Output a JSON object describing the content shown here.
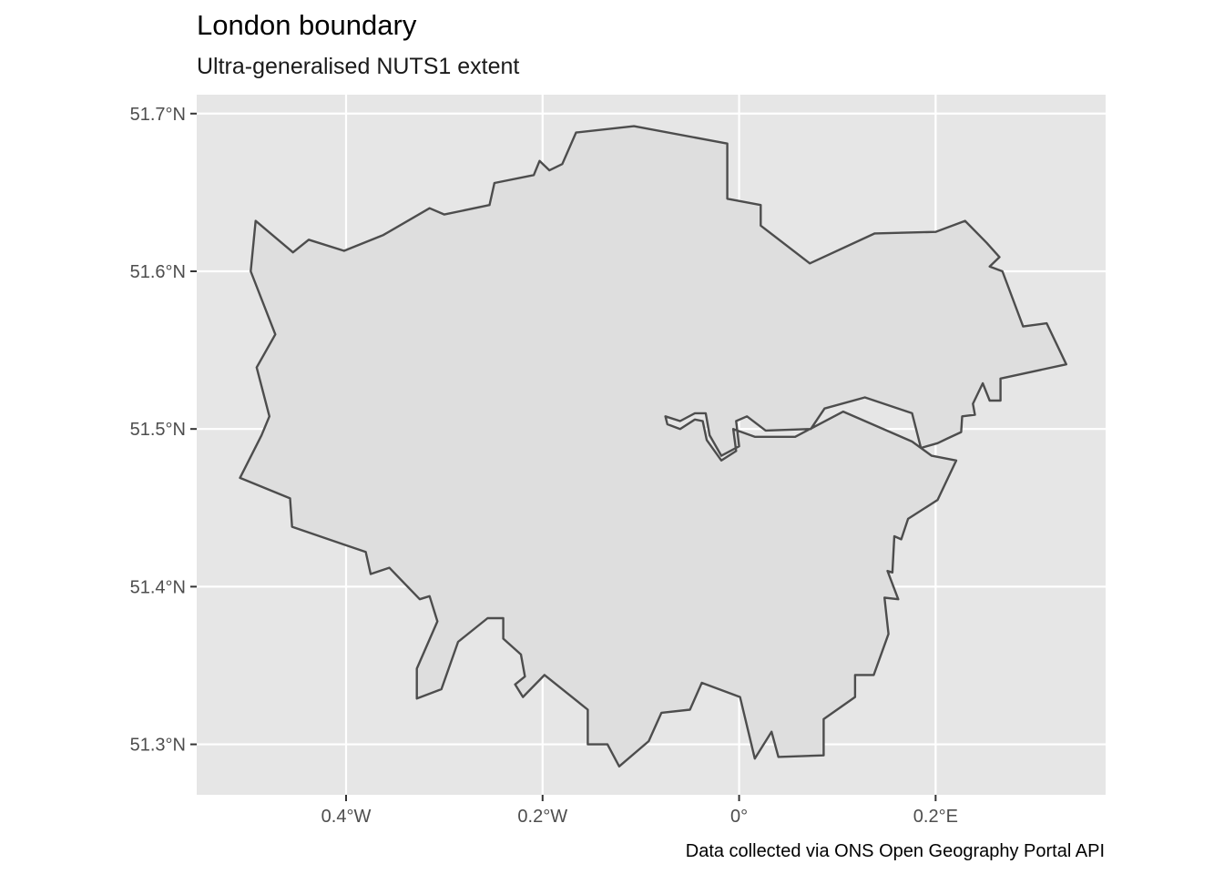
{
  "chart_data": {
    "type": "map",
    "title": "London boundary",
    "subtitle": "Ultra-generalised NUTS1 extent",
    "caption": "Data collected via ONS Open Geography Portal API",
    "xlim": [
      -0.552,
      0.373
    ],
    "ylim": [
      51.268,
      51.712
    ],
    "x_ticks": [
      {
        "value": -0.4,
        "label": "0.4°W"
      },
      {
        "value": -0.2,
        "label": "0.2°W"
      },
      {
        "value": 0.0,
        "label": "0°"
      },
      {
        "value": 0.2,
        "label": "0.2°E"
      }
    ],
    "y_ticks": [
      {
        "value": 51.7,
        "label": "51.7°N"
      },
      {
        "value": 51.6,
        "label": "51.6°N"
      },
      {
        "value": 51.5,
        "label": "51.5°N"
      },
      {
        "value": 51.4,
        "label": "51.4°N"
      },
      {
        "value": 51.3,
        "label": "51.3°N"
      }
    ],
    "grid": true,
    "colors": {
      "panel_background": "#e6e6e6",
      "grid": "#ffffff",
      "region_fill": "#dedede",
      "region_stroke": "#4d4d4d"
    },
    "region": {
      "name": "London",
      "outline": [
        [
          -0.107,
          51.692
        ],
        [
          -0.012,
          51.681
        ],
        [
          -0.012,
          51.646
        ],
        [
          0.022,
          51.642
        ],
        [
          0.022,
          51.629
        ],
        [
          0.072,
          51.605
        ],
        [
          0.138,
          51.624
        ],
        [
          0.2,
          51.625
        ],
        [
          0.23,
          51.632
        ],
        [
          0.252,
          51.618
        ],
        [
          0.265,
          51.609
        ],
        [
          0.255,
          51.603
        ],
        [
          0.268,
          51.6
        ],
        [
          0.289,
          51.565
        ],
        [
          0.313,
          51.567
        ],
        [
          0.333,
          51.541
        ],
        [
          0.266,
          51.532
        ],
        [
          0.266,
          51.518
        ],
        [
          0.255,
          51.518
        ],
        [
          0.248,
          51.529
        ],
        [
          0.238,
          51.516
        ],
        [
          0.24,
          51.509
        ],
        [
          0.227,
          51.508
        ],
        [
          0.226,
          51.498
        ],
        [
          0.212,
          51.494
        ],
        [
          0.202,
          51.491
        ],
        [
          0.185,
          51.488
        ],
        [
          0.176,
          51.51
        ],
        [
          0.128,
          51.52
        ],
        [
          0.087,
          51.513
        ],
        [
          0.073,
          51.5
        ],
        [
          0.027,
          51.499
        ],
        [
          0.008,
          51.508
        ],
        [
          -0.003,
          51.505
        ],
        [
          0.0,
          51.489
        ],
        [
          -0.018,
          51.483
        ],
        [
          -0.03,
          51.496
        ],
        [
          -0.034,
          51.51
        ],
        [
          -0.045,
          51.51
        ],
        [
          -0.06,
          51.505
        ],
        [
          -0.075,
          51.508
        ],
        [
          -0.073,
          51.503
        ],
        [
          -0.06,
          51.5
        ],
        [
          -0.045,
          51.506
        ],
        [
          -0.037,
          51.505
        ],
        [
          -0.033,
          51.493
        ],
        [
          -0.018,
          51.48
        ],
        [
          -0.003,
          51.486
        ],
        [
          -0.006,
          51.5
        ],
        [
          0.016,
          51.495
        ],
        [
          0.057,
          51.495
        ],
        [
          0.106,
          51.511
        ],
        [
          0.176,
          51.492
        ],
        [
          0.196,
          51.483
        ],
        [
          0.221,
          51.48
        ],
        [
          0.202,
          51.455
        ],
        [
          0.172,
          51.443
        ],
        [
          0.165,
          51.43
        ],
        [
          0.158,
          51.432
        ],
        [
          0.156,
          51.409
        ],
        [
          0.151,
          51.41
        ],
        [
          0.162,
          51.392
        ],
        [
          0.148,
          51.393
        ],
        [
          0.152,
          51.37
        ],
        [
          0.137,
          51.344
        ],
        [
          0.118,
          51.344
        ],
        [
          0.118,
          51.33
        ],
        [
          0.086,
          51.316
        ],
        [
          0.086,
          51.293
        ],
        [
          0.04,
          51.292
        ],
        [
          0.033,
          51.308
        ],
        [
          0.016,
          51.291
        ],
        [
          0.001,
          51.33
        ],
        [
          -0.038,
          51.339
        ],
        [
          -0.05,
          51.322
        ],
        [
          -0.079,
          51.32
        ],
        [
          -0.092,
          51.302
        ],
        [
          -0.122,
          51.286
        ],
        [
          -0.134,
          51.3
        ],
        [
          -0.154,
          51.3
        ],
        [
          -0.154,
          51.322
        ],
        [
          -0.198,
          51.344
        ],
        [
          -0.22,
          51.33
        ],
        [
          -0.228,
          51.338
        ],
        [
          -0.218,
          51.343
        ],
        [
          -0.222,
          51.357
        ],
        [
          -0.24,
          51.367
        ],
        [
          -0.24,
          51.38
        ],
        [
          -0.256,
          51.38
        ],
        [
          -0.286,
          51.365
        ],
        [
          -0.303,
          51.335
        ],
        [
          -0.328,
          51.329
        ],
        [
          -0.328,
          51.348
        ],
        [
          -0.307,
          51.378
        ],
        [
          -0.315,
          51.394
        ],
        [
          -0.325,
          51.392
        ],
        [
          -0.356,
          51.412
        ],
        [
          -0.375,
          51.408
        ],
        [
          -0.38,
          51.422
        ],
        [
          -0.455,
          51.438
        ],
        [
          -0.457,
          51.456
        ],
        [
          -0.508,
          51.469
        ],
        [
          -0.486,
          51.496
        ],
        [
          -0.478,
          51.508
        ],
        [
          -0.491,
          51.539
        ],
        [
          -0.472,
          51.56
        ],
        [
          -0.497,
          51.6
        ],
        [
          -0.492,
          51.632
        ],
        [
          -0.454,
          51.612
        ],
        [
          -0.438,
          51.62
        ],
        [
          -0.402,
          51.613
        ],
        [
          -0.362,
          51.623
        ],
        [
          -0.315,
          51.64
        ],
        [
          -0.3,
          51.636
        ],
        [
          -0.254,
          51.642
        ],
        [
          -0.249,
          51.656
        ],
        [
          -0.209,
          51.661
        ],
        [
          -0.203,
          51.67
        ],
        [
          -0.193,
          51.664
        ],
        [
          -0.18,
          51.668
        ],
        [
          -0.166,
          51.688
        ]
      ]
    }
  }
}
